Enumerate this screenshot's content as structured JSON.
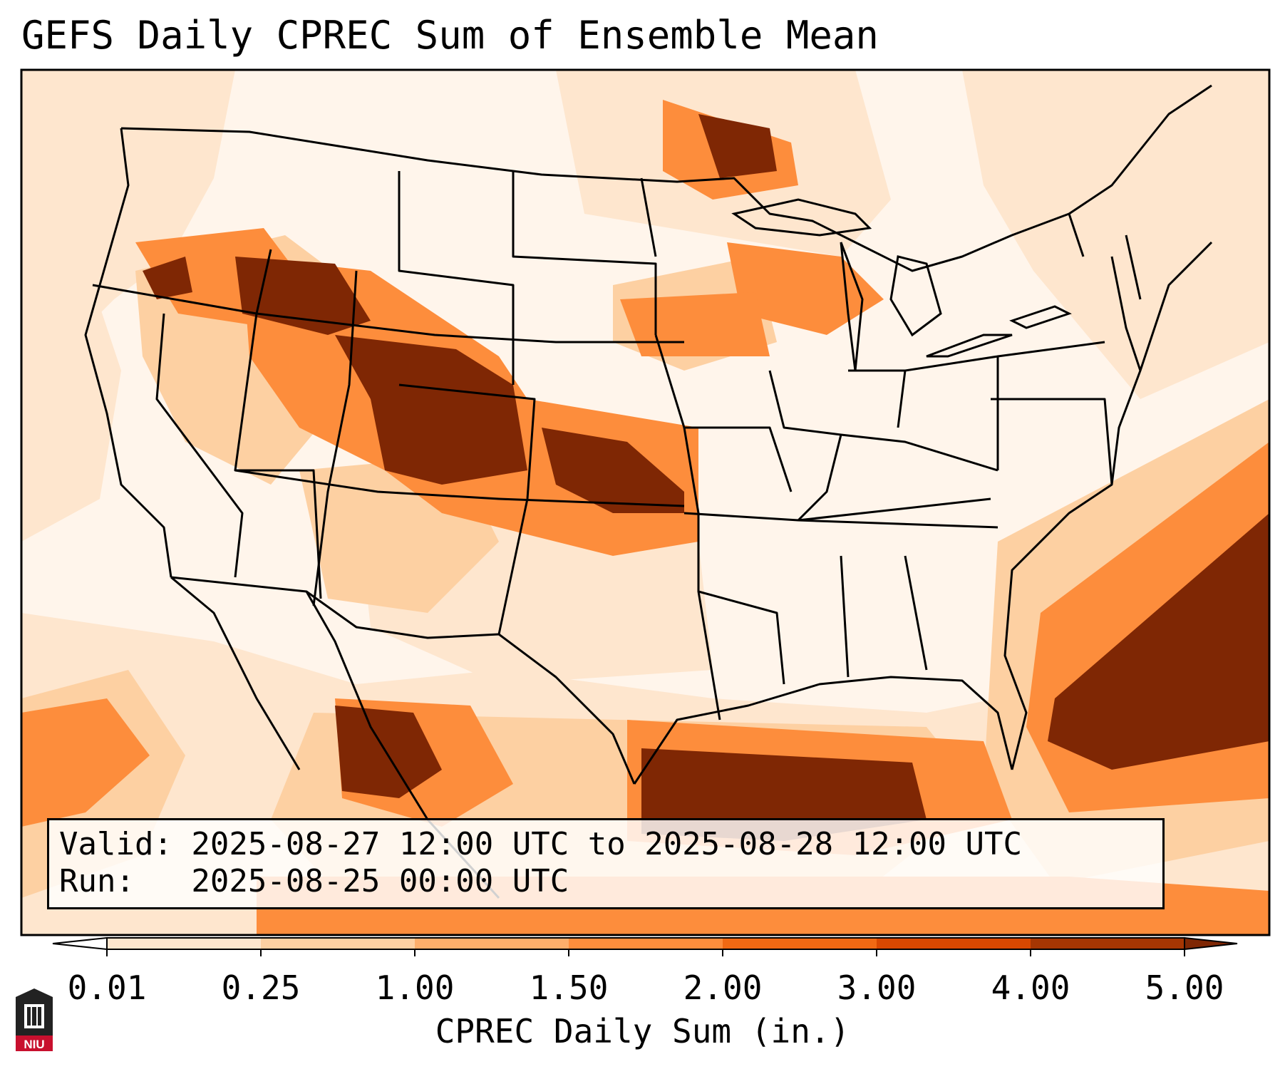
{
  "title": "GEFS Daily CPREC Sum of Ensemble Mean",
  "info": {
    "valid_line": "Valid: 2025-08-27 12:00 UTC to 2025-08-28 12:00 UTC",
    "run_line": "Run:   2025-08-25 00:00 UTC"
  },
  "colorbar": {
    "label": "CPREC Daily Sum (in.)",
    "ticks": [
      "0.01",
      "0.25",
      "1.00",
      "1.50",
      "2.00",
      "3.00",
      "4.00",
      "5.00"
    ],
    "colors": [
      "#fff5eb",
      "#fee6ce",
      "#fdd0a2",
      "#fdae6b",
      "#fd8d3c",
      "#f16913",
      "#d94801",
      "#a63603",
      "#7f2704"
    ]
  },
  "logo": {
    "text": "NIU",
    "colors": {
      "red": "#c8102e",
      "dark": "#222222"
    }
  },
  "map": {
    "projection": "Lambert conformal, CONUS",
    "features": [
      "state borders",
      "country borders",
      "coastlines",
      "Great Lakes"
    ]
  }
}
